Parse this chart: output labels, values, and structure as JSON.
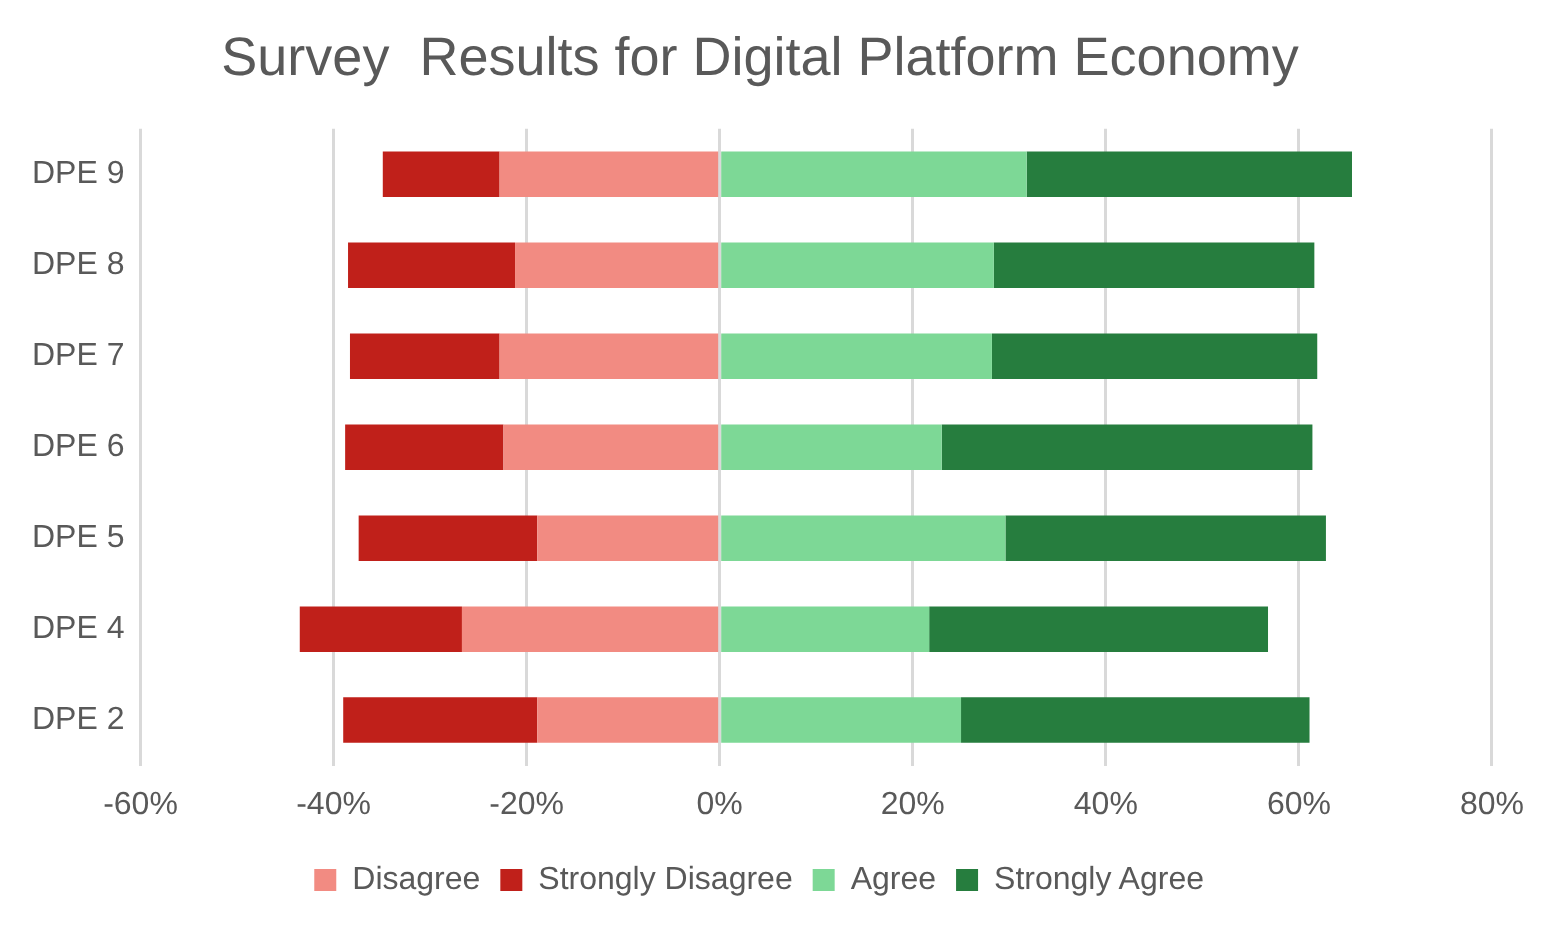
{
  "chart_data": {
    "type": "bar",
    "orientation": "horizontal",
    "stacked": true,
    "title": "Survey  Results for Digital Platform Economy",
    "categories": [
      "DPE 9",
      "DPE 8",
      "DPE 7",
      "DPE 6",
      "DPE 5",
      "DPE 4",
      "DPE 2"
    ],
    "series": [
      {
        "name": "Disagree",
        "color": "#f28b82",
        "values": [
          -22.8,
          -21.2,
          -22.8,
          -22.4,
          -18.9,
          -26.7,
          -18.9
        ]
      },
      {
        "name": "Strongly Disagree",
        "color": "#c0201a",
        "values": [
          -12.1,
          -17.3,
          -15.5,
          -16.4,
          -18.5,
          -16.8,
          -20.1
        ]
      },
      {
        "name": "Agree",
        "color": "#7dd896",
        "values": [
          31.8,
          28.4,
          28.2,
          23.0,
          29.6,
          21.7,
          25.0
        ]
      },
      {
        "name": "Strongly Agree",
        "color": "#267d3e",
        "values": [
          33.7,
          33.2,
          33.7,
          38.4,
          33.2,
          35.1,
          36.1
        ]
      }
    ],
    "xlim": [
      -60,
      80
    ],
    "xticks": [
      {
        "value": -60,
        "label": "-60%"
      },
      {
        "value": -40,
        "label": "-40%"
      },
      {
        "value": -20,
        "label": "-20%"
      },
      {
        "value": 0,
        "label": "0%"
      },
      {
        "value": 20,
        "label": "20%"
      },
      {
        "value": 40,
        "label": "40%"
      },
      {
        "value": 60,
        "label": "60%"
      },
      {
        "value": 80,
        "label": "80%"
      }
    ],
    "grid": "x",
    "legend": "bottom"
  }
}
